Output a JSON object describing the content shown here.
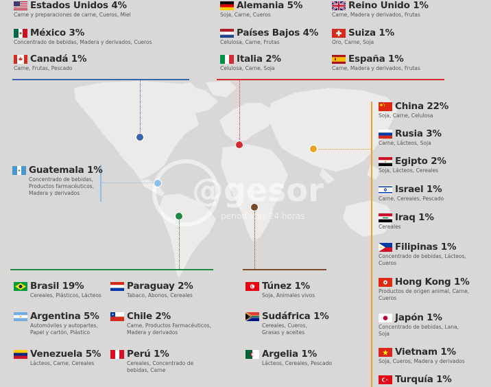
{
  "watermark": {
    "brand": "@gesor",
    "tagline": "periodistas 24 horas"
  },
  "colors": {
    "north": "#3a63ad",
    "europe": "#d6282e",
    "asia": "#e7a32a",
    "central": "#8fbde6",
    "south": "#1c8a40",
    "africa": "#7a4a2a"
  },
  "countries": {
    "usa": {
      "name": "Estados Unidos 4%",
      "desc": "Carne y preparaciones de carne, Cueros, Miel"
    },
    "mexico": {
      "name": "México 3%",
      "desc": "Concentrado de bebidas, Madera y derivados, Cueros"
    },
    "canada": {
      "name": "Canadá 1%",
      "desc": "Carne, Frutas, Pescado"
    },
    "alemania": {
      "name": "Alemania 5%",
      "desc": "Soja, Carne, Cueros"
    },
    "paises_bajos": {
      "name": "Países Bajos 4%",
      "desc": "Celulosa, Carne, Frutas"
    },
    "italia": {
      "name": "Italia 2%",
      "desc": "Celulosa, Carne, Soja"
    },
    "reino_unido": {
      "name": "Reino Unido 1%",
      "desc": "Carne, Madera y derivados, Frutas"
    },
    "suiza": {
      "name": "Suiza 1%",
      "desc": "Oro, Carne, Soja"
    },
    "espana": {
      "name": "España 1%",
      "desc": "Carne, Madera y derivados, Frutas"
    },
    "china": {
      "name": "China 22%",
      "desc": "Soja, Carne, Celulosa"
    },
    "rusia": {
      "name": "Rusia 3%",
      "desc": "Carne, Lácteos, Soja"
    },
    "egipto": {
      "name": "Egipto 2%",
      "desc": "Soja, Lácteos, Cereales"
    },
    "israel": {
      "name": "Israel 1%",
      "desc": "Carne, Cereales, Pescado"
    },
    "iraq": {
      "name": "Iraq 1%",
      "desc": "Cereales"
    },
    "filipinas": {
      "name": "Filipinas 1%",
      "desc": "Concentrado de bebidas, Lácteos, Cueros"
    },
    "hong_kong": {
      "name": "Hong Kong 1%",
      "desc": "Productos de origen animal, Carne, Cueros"
    },
    "japon": {
      "name": "Japón 1%",
      "desc": "Concentrado de bebidas, Lana, Soja"
    },
    "vietnam": {
      "name": "Vietnam 1%",
      "desc": "Soja, Cueros, Madera y derivados"
    },
    "turquia": {
      "name": "Turquía 1%",
      "desc": ""
    },
    "guatemala": {
      "name": "Guatemala 1%",
      "desc": "Concentrado de bebidas, Productos farmacéuticos, Madera y derivados"
    },
    "brasil": {
      "name": "Brasil 19%",
      "desc": "Cereales, Plásticos, Lácteos"
    },
    "argentina": {
      "name": "Argentina 5%",
      "desc": "Automóviles y autopartes, Papel y cartón, Plástico"
    },
    "venezuela": {
      "name": "Venezuela 5%",
      "desc": "Lácteos, Carne, Cereales"
    },
    "paraguay": {
      "name": "Paraguay 2%",
      "desc": "Tabaco, Abonos, Cereales"
    },
    "chile": {
      "name": "Chile 2%",
      "desc": "Carne, Productos Farmacéuticos, Madera y derivados"
    },
    "peru": {
      "name": "Perú 1%",
      "desc": "Cereales, Concentrado de bebidas, Carne"
    },
    "tunez": {
      "name": "Túnez 1%",
      "desc": "Soja, Animales vivos"
    },
    "sudafrica": {
      "name": "Sudáfrica 1%",
      "desc": "Cereales, Cueros, Grasas y aceites"
    },
    "argelia": {
      "name": "Argelia 1%",
      "desc": "Lácteos, Cereales, Pescado"
    }
  }
}
